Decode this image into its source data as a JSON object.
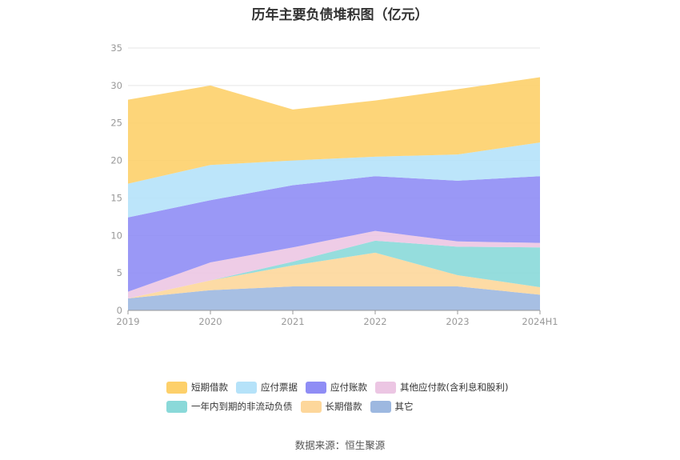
{
  "chart_data": {
    "type": "area",
    "stacked": true,
    "title": "历年主要负债堆积图（亿元）",
    "categories": [
      "2019",
      "2020",
      "2021",
      "2022",
      "2023",
      "2024H1"
    ],
    "ylim": [
      0,
      35
    ],
    "yticks": [
      0,
      5,
      10,
      15,
      20,
      25,
      30,
      35
    ],
    "grid": true,
    "legend_position": "bottom",
    "series": [
      {
        "name": "其它",
        "color": "#9db8e0",
        "values": [
          1.6,
          2.7,
          3.2,
          3.2,
          3.2,
          2.1
        ]
      },
      {
        "name": "长期借款",
        "color": "#fdd79b",
        "values": [
          0.0,
          1.3,
          2.8,
          4.5,
          1.5,
          1.0
        ]
      },
      {
        "name": "一年内到期的非流动负债",
        "color": "#8ad9d9",
        "values": [
          0.0,
          0.0,
          0.5,
          1.6,
          3.8,
          5.3
        ]
      },
      {
        "name": "其他应付款(含利息和股利)",
        "color": "#ecc6e3",
        "values": [
          0.9,
          2.4,
          1.9,
          1.3,
          0.7,
          0.6
        ]
      },
      {
        "name": "应付账款",
        "color": "#8f8df5",
        "values": [
          9.9,
          8.3,
          8.3,
          7.3,
          8.1,
          8.9
        ]
      },
      {
        "name": "应付票据",
        "color": "#b5e2f9",
        "values": [
          4.5,
          4.7,
          3.3,
          2.6,
          3.5,
          4.5
        ]
      },
      {
        "name": "短期借款",
        "color": "#fdd06a",
        "values": [
          11.2,
          10.6,
          6.8,
          7.5,
          8.7,
          8.7
        ]
      }
    ],
    "source": "数据来源：恒生聚源"
  }
}
